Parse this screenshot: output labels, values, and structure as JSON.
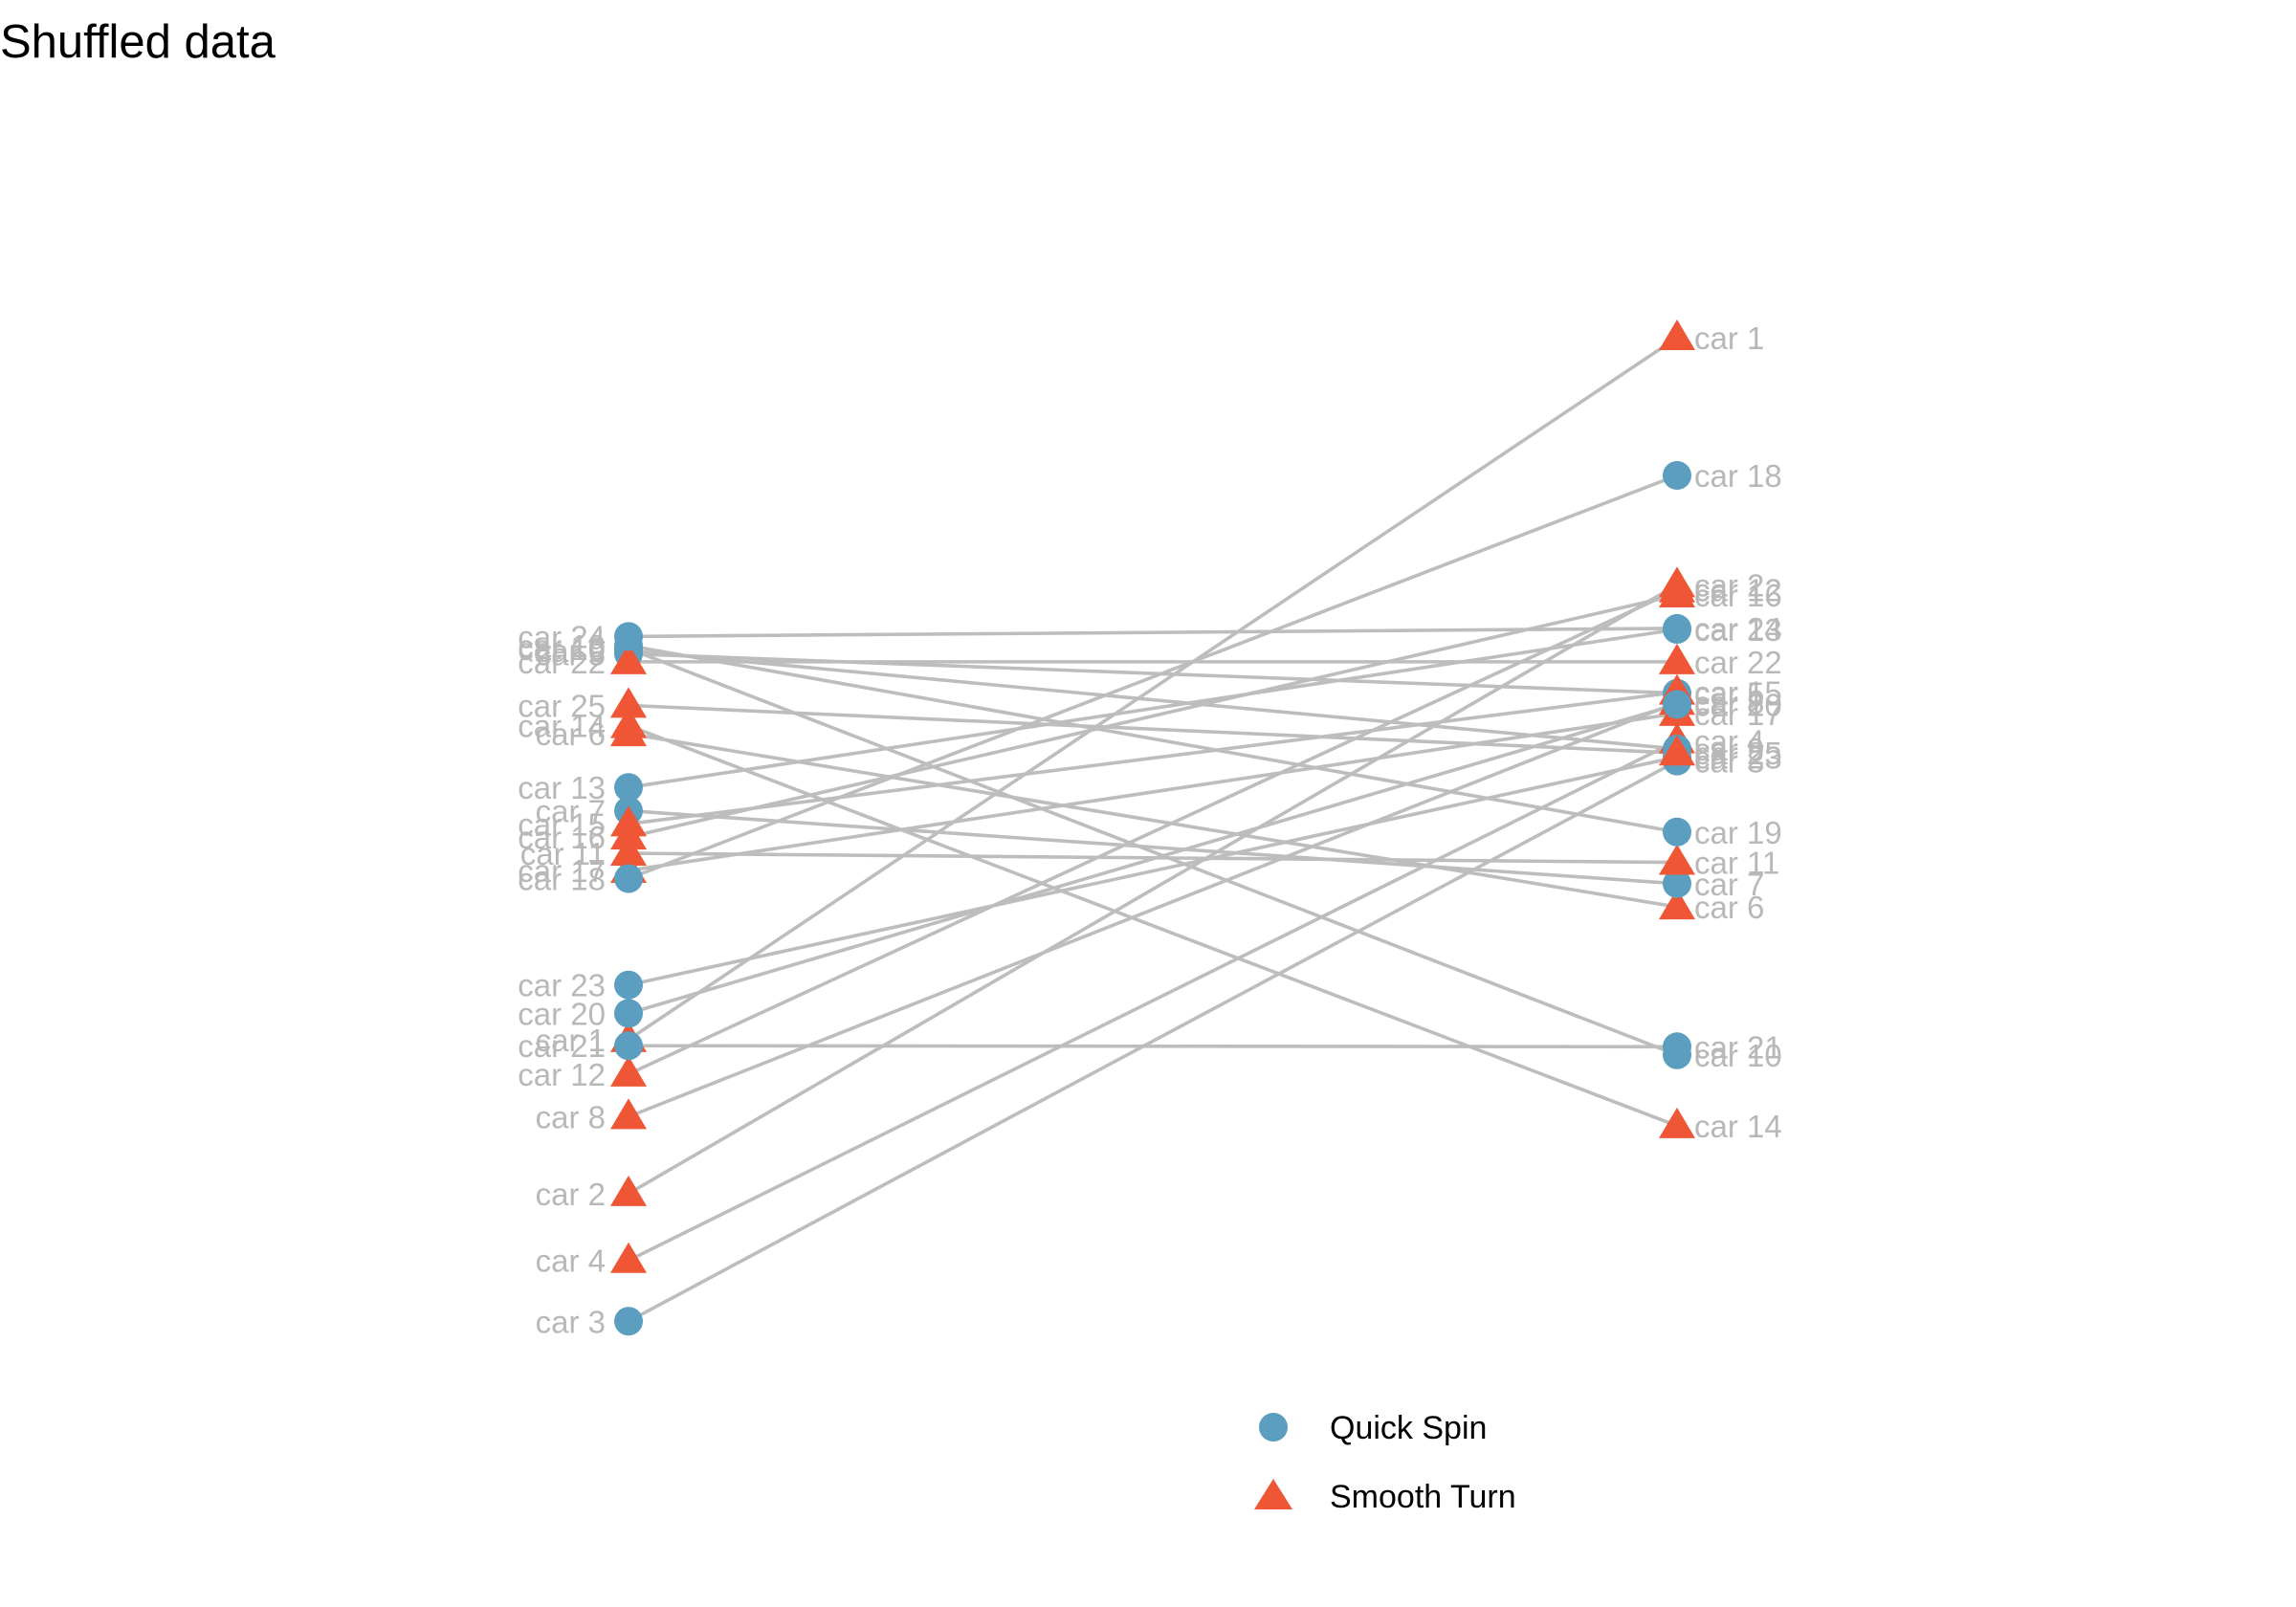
{
  "chart_data": {
    "type": "slope",
    "title": "Shuffled data",
    "xlabel": "",
    "ylabel": "",
    "grid": false,
    "legend_position": "bottom",
    "colors": {
      "Quick Spin": "#5b9ec0",
      "Smooth Turn": "#ee5636",
      "line": "#bdbdbd",
      "label": "#b8b8b8"
    },
    "legend": [
      {
        "name": "Quick Spin",
        "shape": "circle"
      },
      {
        "name": "Smooth Turn",
        "shape": "triangle"
      }
    ],
    "ylim": [
      0,
      1
    ],
    "cars": [
      {
        "name": "car 1",
        "group": "Smooth Turn",
        "left": 0.307,
        "right": 1.0
      },
      {
        "name": "car 2",
        "group": "Smooth Turn",
        "left": 0.155,
        "right": 0.756
      },
      {
        "name": "car 3",
        "group": "Quick Spin",
        "left": 0.029,
        "right": 0.582
      },
      {
        "name": "car 4",
        "group": "Smooth Turn",
        "left": 0.089,
        "right": 0.602
      },
      {
        "name": "car 5",
        "group": "Quick Spin",
        "left": 0.688,
        "right": 0.649
      },
      {
        "name": "car 6",
        "group": "Smooth Turn",
        "left": 0.609,
        "right": 0.438
      },
      {
        "name": "car 7",
        "group": "Quick Spin",
        "left": 0.533,
        "right": 0.461
      },
      {
        "name": "car 8",
        "group": "Smooth Turn",
        "left": 0.231,
        "right": 0.64
      },
      {
        "name": "car 9",
        "group": "Quick Spin",
        "left": 0.691,
        "right": 0.594
      },
      {
        "name": "car 10",
        "group": "Quick Spin",
        "left": 0.693,
        "right": 0.292
      },
      {
        "name": "car 11",
        "group": "Smooth Turn",
        "left": 0.491,
        "right": 0.482
      },
      {
        "name": "car 12",
        "group": "Smooth Turn",
        "left": 0.273,
        "right": 0.751
      },
      {
        "name": "car 13",
        "group": "Quick Spin",
        "left": 0.556,
        "right": 0.712
      },
      {
        "name": "car 14",
        "group": "Smooth Turn",
        "left": 0.617,
        "right": 0.222
      },
      {
        "name": "car 15",
        "group": "Smooth Turn",
        "left": 0.52,
        "right": 0.65
      },
      {
        "name": "car 16",
        "group": "Smooth Turn",
        "left": 0.507,
        "right": 0.746
      },
      {
        "name": "car 17",
        "group": "Smooth Turn",
        "left": 0.474,
        "right": 0.629
      },
      {
        "name": "car 18",
        "group": "Quick Spin",
        "left": 0.466,
        "right": 0.864
      },
      {
        "name": "car 19",
        "group": "Quick Spin",
        "left": 0.696,
        "right": 0.512
      },
      {
        "name": "car 20",
        "group": "Quick Spin",
        "left": 0.333,
        "right": 0.638
      },
      {
        "name": "car 21",
        "group": "Quick Spin",
        "left": 0.301,
        "right": 0.3
      },
      {
        "name": "car 22",
        "group": "Smooth Turn",
        "left": 0.68,
        "right": 0.68
      },
      {
        "name": "car 23",
        "group": "Quick Spin",
        "left": 0.361,
        "right": 0.586
      },
      {
        "name": "car 24",
        "group": "Quick Spin",
        "left": 0.705,
        "right": 0.713
      },
      {
        "name": "car 25",
        "group": "Smooth Turn",
        "left": 0.637,
        "right": 0.59
      }
    ]
  }
}
